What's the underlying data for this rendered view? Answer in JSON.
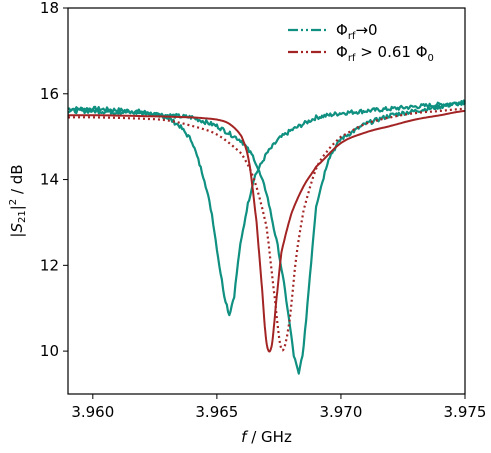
{
  "chart_data": {
    "type": "line",
    "xlabel": "f / GHz",
    "ylabel": "|S21|^2 / dB",
    "xlim": [
      3.959,
      3.975
    ],
    "ylim": [
      9,
      18
    ],
    "x_ticks": [
      3.96,
      3.965,
      3.97,
      3.975
    ],
    "x_tick_labels": [
      "3.960",
      "3.965",
      "3.970",
      "3.975"
    ],
    "y_ticks": [
      10,
      12,
      14,
      16,
      18
    ],
    "y_tick_labels": [
      "10",
      "12",
      "14",
      "16",
      "18"
    ],
    "grid": false,
    "legend_position": "top-right",
    "colors": {
      "teal": "#0f9080",
      "red": "#a32424"
    },
    "series": [
      {
        "name": "Φrf→0",
        "color": "#0f9080",
        "style": "measured-noisy",
        "x": [
          3.959,
          3.96,
          3.961,
          3.962,
          3.963,
          3.9635,
          3.964,
          3.9645,
          3.9648,
          3.9651,
          3.9653,
          3.9655,
          3.9657,
          3.9659,
          3.9662,
          3.9665,
          3.967,
          3.9675,
          3.968,
          3.9685,
          3.969,
          3.97,
          3.971,
          3.972,
          3.973,
          3.974,
          3.975
        ],
        "y": [
          15.65,
          15.65,
          15.62,
          15.58,
          15.45,
          15.25,
          14.9,
          14.0,
          13.2,
          12.0,
          11.3,
          10.85,
          11.3,
          12.3,
          13.3,
          14.05,
          14.6,
          14.95,
          15.15,
          15.3,
          15.45,
          15.55,
          15.6,
          15.65,
          15.7,
          15.75,
          15.8
        ]
      },
      {
        "name": "Φrf→0",
        "color": "#0f9080",
        "style": "measured-noisy",
        "x": [
          3.959,
          3.96,
          3.962,
          3.964,
          3.965,
          3.966,
          3.9665,
          3.967,
          3.9675,
          3.9678,
          3.9681,
          3.9683,
          3.9685,
          3.9688,
          3.969,
          3.9695,
          3.97,
          3.971,
          3.972,
          3.973,
          3.974,
          3.975
        ],
        "y": [
          15.6,
          15.6,
          15.55,
          15.45,
          15.25,
          14.9,
          14.5,
          13.7,
          12.3,
          11.2,
          9.9,
          9.45,
          10.1,
          12.1,
          13.4,
          14.5,
          14.95,
          15.3,
          15.5,
          15.6,
          15.7,
          15.8
        ]
      },
      {
        "name": "Φrf > 0.61 Φ0",
        "color": "#a32424",
        "style": "solid",
        "x": [
          3.959,
          3.96,
          3.962,
          3.964,
          3.965,
          3.9655,
          3.966,
          3.9663,
          3.9666,
          3.9668,
          3.967,
          3.9672,
          3.9674,
          3.9676,
          3.968,
          3.9685,
          3.969,
          3.97,
          3.971,
          3.972,
          3.973,
          3.974,
          3.975
        ],
        "y": [
          15.5,
          15.5,
          15.48,
          15.45,
          15.4,
          15.3,
          15.0,
          14.4,
          13.0,
          11.6,
          10.2,
          10.1,
          11.2,
          12.3,
          13.2,
          13.85,
          14.3,
          14.85,
          15.1,
          15.25,
          15.4,
          15.5,
          15.6
        ]
      },
      {
        "name": "Φrf > 0.61 Φ0",
        "color": "#a32424",
        "style": "dotted",
        "x": [
          3.959,
          3.96,
          3.962,
          3.963,
          3.964,
          3.965,
          3.966,
          3.9665,
          3.967,
          3.9673,
          3.9676,
          3.9679,
          3.9682,
          3.9685,
          3.969,
          3.9695,
          3.97,
          3.971,
          3.972,
          3.973,
          3.974,
          3.975
        ],
        "y": [
          15.45,
          15.45,
          15.42,
          15.38,
          15.25,
          15.05,
          14.6,
          14.0,
          12.9,
          11.4,
          10.05,
          10.6,
          12.2,
          13.3,
          14.25,
          14.7,
          15.0,
          15.3,
          15.45,
          15.55,
          15.6,
          15.65
        ]
      }
    ],
    "legend": [
      {
        "label": "Φrf→0",
        "color": "#0f9080",
        "dash": "10 3 2 3 2 3"
      },
      {
        "label": "Φrf > 0.61 Φ0",
        "color": "#a32424",
        "dash": "10 3 2 3 2 3"
      }
    ]
  }
}
